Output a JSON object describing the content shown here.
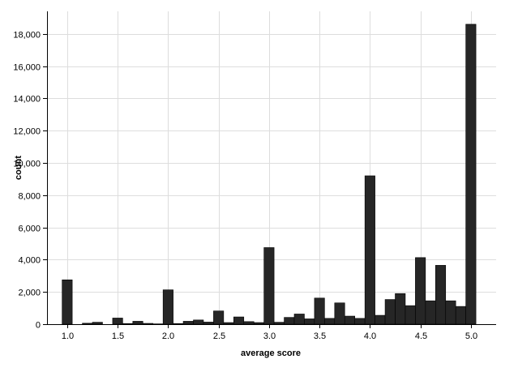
{
  "chart_data": {
    "type": "bar",
    "title": "",
    "xlabel": "average score",
    "ylabel": "count",
    "xlim": [
      0.8,
      5.25
    ],
    "ylim": [
      0,
      19400
    ],
    "grid": true,
    "bar_width": 0.1,
    "x_ticks": [
      1.0,
      1.5,
      2.0,
      2.5,
      3.0,
      3.5,
      4.0,
      4.5,
      5.0
    ],
    "x_tick_labels": [
      "1.0",
      "1.5",
      "2.0",
      "2.5",
      "3.0",
      "3.5",
      "4.0",
      "4.5",
      "5.0"
    ],
    "y_ticks": [
      0,
      2000,
      4000,
      6000,
      8000,
      10000,
      12000,
      14000,
      16000,
      18000
    ],
    "y_tick_labels": [
      "0",
      "2,000",
      "4,000",
      "6,000",
      "8,000",
      "10,000",
      "12,000",
      "14,000",
      "16,000",
      "18,000"
    ],
    "x": [
      1.0,
      1.2,
      1.3,
      1.5,
      1.6,
      1.7,
      1.8,
      1.9,
      2.0,
      2.1,
      2.2,
      2.3,
      2.4,
      2.5,
      2.6,
      2.7,
      2.8,
      2.9,
      3.0,
      3.1,
      3.2,
      3.3,
      3.4,
      3.5,
      3.6,
      3.7,
      3.8,
      3.9,
      4.0,
      4.1,
      4.2,
      4.3,
      4.4,
      4.5,
      4.6,
      4.7,
      4.8,
      4.9,
      5.0
    ],
    "values": [
      2750,
      60,
      120,
      380,
      40,
      180,
      50,
      20,
      2130,
      40,
      180,
      260,
      130,
      820,
      100,
      450,
      160,
      100,
      4750,
      120,
      420,
      630,
      330,
      1620,
      360,
      1320,
      500,
      360,
      9200,
      550,
      1530,
      1900,
      1150,
      4130,
      1450,
      3650,
      1450,
      1100,
      18600
    ]
  }
}
